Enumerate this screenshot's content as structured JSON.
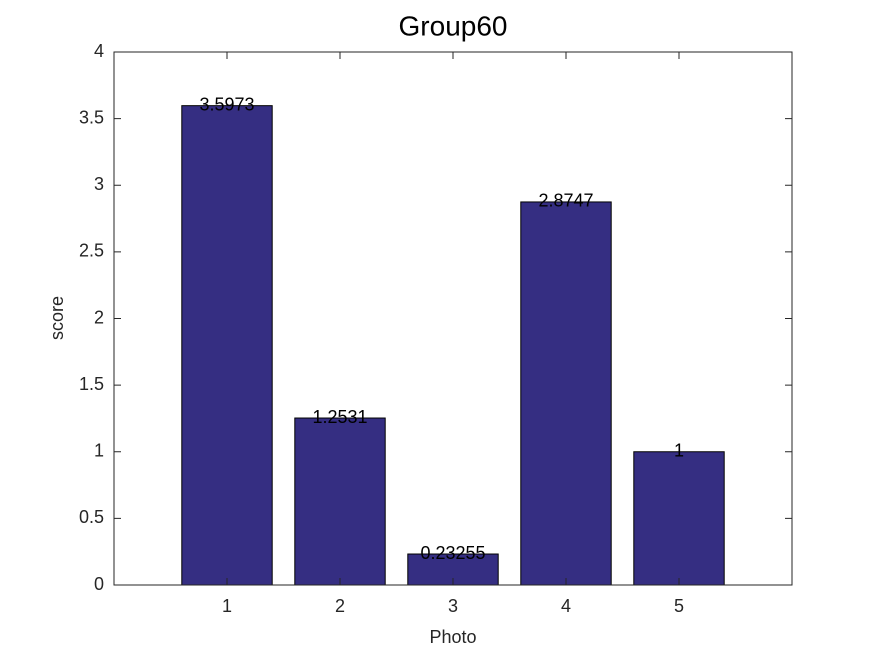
{
  "chart_data": {
    "type": "bar",
    "title": "Group60",
    "x_label": "Photo",
    "y_label": "score",
    "x": [
      1,
      2,
      3,
      4,
      5
    ],
    "values": [
      3.5973,
      1.2531,
      0.23255,
      2.8747,
      1
    ],
    "color": "#352e82",
    "xlim": [
      0,
      6
    ],
    "xticks": [
      1,
      2,
      3,
      4,
      5
    ],
    "ylim": [
      0,
      4
    ],
    "yticks": [
      0,
      0.5,
      1,
      1.5,
      2,
      2.5,
      3,
      3.5,
      4
    ]
  }
}
